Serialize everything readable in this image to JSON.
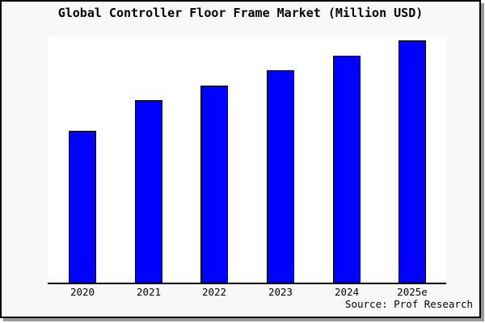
{
  "figure": {
    "title": "Global Controller Floor Frame Market (Million USD)",
    "source": "Source: Prof Research",
    "background_color": "#f8f8f8",
    "plot_background_color": "#ffffff",
    "border_color": "#000000",
    "shadow_color": "#999999"
  },
  "chart_data": {
    "type": "bar",
    "title": "Global Controller Floor Frame Market (Million USD)",
    "categories": [
      "2020",
      "2021",
      "2022",
      "2023",
      "2024",
      "2025e"
    ],
    "values": [
      62.7,
      75.3,
      81.4,
      87.7,
      93.7,
      100
    ],
    "values_basis": "relative estimate, tallest bar (2025e) = 100; chart shows no y-axis scale",
    "xlabel": "",
    "ylabel": "",
    "ylim": [
      0,
      101.5
    ],
    "grid": false,
    "legend": "none",
    "bar_color": "#0000ff",
    "bar_edge_color": "#000000",
    "source": "Source: Prof Research"
  }
}
